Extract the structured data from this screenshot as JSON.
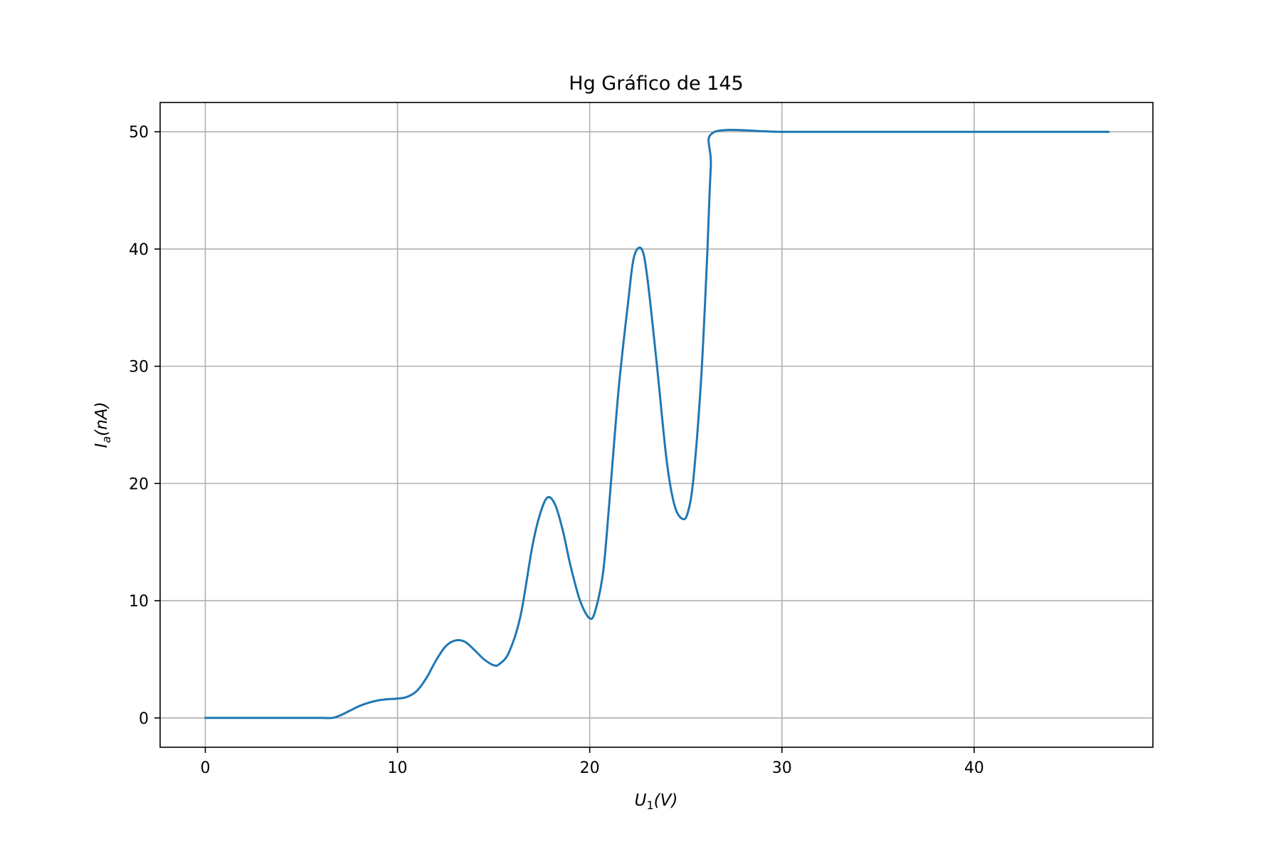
{
  "chart_data": {
    "type": "line",
    "title": "Hg Gráfico de 145",
    "xlabel": {
      "main": "U",
      "sub": "1",
      "rest": "(V)"
    },
    "ylabel": {
      "main": "I",
      "sub": "a",
      "rest": "(nA)"
    },
    "xlim": [
      -2.35,
      49.3
    ],
    "ylim": [
      -2.5,
      52.5
    ],
    "xticks": [
      0,
      10,
      20,
      30,
      40
    ],
    "xtick_labels": [
      "0",
      "10",
      "20",
      "30",
      "40"
    ],
    "yticks": [
      0,
      10,
      20,
      30,
      40,
      50
    ],
    "ytick_labels": [
      "0",
      "10",
      "20",
      "30",
      "40",
      "50"
    ],
    "grid": true,
    "series": [
      {
        "color": "#1f77b4",
        "x": [
          0,
          2,
          4,
          6,
          6.6,
          7,
          7.5,
          8,
          8.5,
          9,
          9.5,
          10,
          10.5,
          11,
          11.5,
          12,
          12.5,
          13,
          13.5,
          14,
          14.5,
          15,
          15.3,
          15.8,
          16.4,
          17,
          17.4,
          17.8,
          18.2,
          18.6,
          19,
          19.5,
          20,
          20.3,
          20.7,
          21,
          21.5,
          22,
          22.3,
          22.7,
          23,
          23.5,
          24,
          24.4,
          24.8,
          25.1,
          25.4,
          25.8,
          26.1,
          26.3,
          26.5,
          30,
          35,
          40,
          45,
          47
        ],
        "y": [
          0,
          0,
          0,
          0,
          0,
          0.2,
          0.6,
          1,
          1.3,
          1.5,
          1.6,
          1.65,
          1.8,
          2.3,
          3.4,
          4.9,
          6.1,
          6.6,
          6.5,
          5.8,
          5,
          4.5,
          4.6,
          5.6,
          8.7,
          14.5,
          17.3,
          18.8,
          18.2,
          16,
          13,
          10,
          8.5,
          9.2,
          12.5,
          18,
          28,
          35.5,
          39.3,
          40,
          37.5,
          30,
          22,
          18.2,
          17,
          17.5,
          20.5,
          29,
          39,
          47,
          50,
          50,
          50,
          50,
          50,
          50
        ]
      }
    ]
  }
}
